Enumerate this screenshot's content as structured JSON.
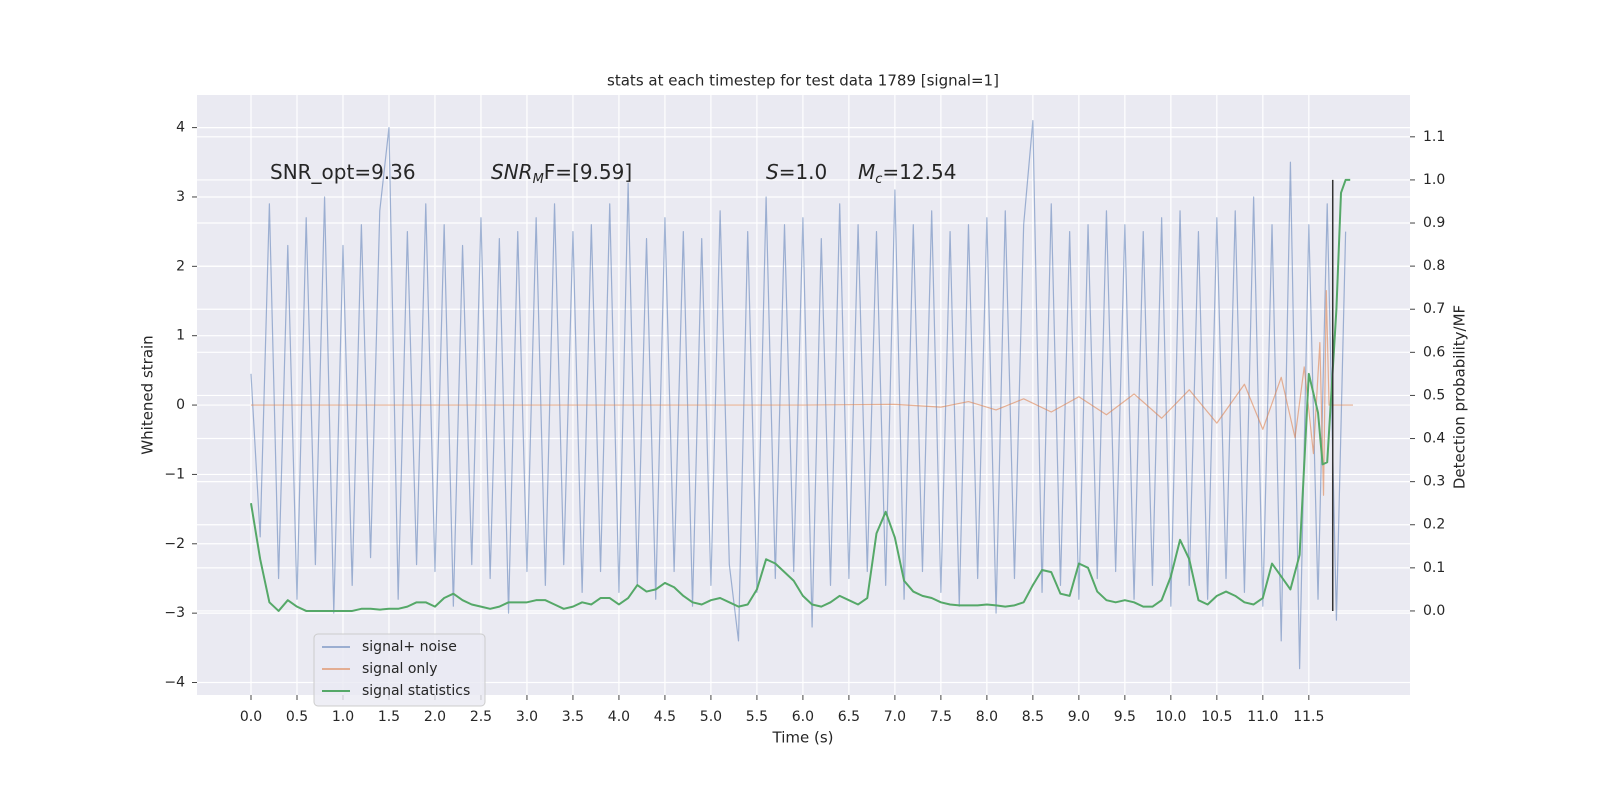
{
  "chart_data": {
    "type": "line",
    "title": "stats at each timestep for test data 1789 [signal=1]",
    "xlabel": "Time (s)",
    "ylabel": "Whitened strain",
    "y2label": "Detection probability/MF",
    "xlim": [
      -0.587,
      12.6
    ],
    "ylim": [
      -4.18,
      4.47
    ],
    "y2lim": [
      -0.195,
      1.197
    ],
    "xticks": [
      {
        "value": 0,
        "label": "0.0"
      },
      0.5,
      {
        "value": 1,
        "label": "1.0"
      },
      1.5,
      {
        "value": 2,
        "label": "2.0"
      },
      2.5,
      {
        "value": 3,
        "label": "3.0"
      },
      3.5,
      {
        "value": 4,
        "label": "4.0"
      },
      4.5,
      {
        "value": 5,
        "label": "5.0"
      },
      5.5,
      {
        "value": 6,
        "label": "6.0"
      },
      6.5,
      {
        "value": 7,
        "label": "7.0"
      },
      7.5,
      {
        "value": 8,
        "label": "8.0"
      },
      8.5,
      {
        "value": 9,
        "label": "9.0"
      },
      9.5,
      {
        "value": 10,
        "label": "10.0"
      },
      10.5,
      {
        "value": 11,
        "label": "11.0"
      },
      11.5
    ],
    "yticks": [
      {
        "value": -4,
        "label": "−4"
      },
      {
        "value": -3,
        "label": "−3"
      },
      {
        "value": -2,
        "label": "−2"
      },
      {
        "value": -1,
        "label": "−1"
      },
      0,
      1,
      2,
      3,
      4
    ],
    "y2ticks": [
      {
        "value": 0,
        "label": "0.0"
      },
      0.1,
      0.2,
      0.3,
      0.4,
      0.5,
      0.6,
      0.7,
      0.8,
      0.9,
      {
        "value": 1,
        "label": "1.0"
      },
      1.1
    ],
    "grid": true,
    "legend": "lower left",
    "annotations": [
      {
        "text": "SNR_opt=9.36"
      },
      {
        "text": "SNR",
        "sub": "M",
        "rest": "F=[9.59]"
      },
      {
        "text": "S",
        "rest": "=1.0"
      },
      {
        "text": "M",
        "sub": "c",
        "rest": "=12.54"
      }
    ],
    "vline": {
      "x": 11.76,
      "y2": [
        0,
        1
      ],
      "color": "#333333"
    },
    "series": [
      {
        "name": "signal+ noise",
        "color": "#4c72b0",
        "opacity": 0.5,
        "x": [
          0.0,
          0.1,
          0.2,
          0.3,
          0.4,
          0.5,
          0.6,
          0.7,
          0.8,
          0.9,
          1.0,
          1.1,
          1.2,
          1.3,
          1.4,
          1.5,
          1.6,
          1.7,
          1.8,
          1.9,
          2.0,
          2.1,
          2.2,
          2.3,
          2.4,
          2.5,
          2.6,
          2.7,
          2.8,
          2.9,
          3.0,
          3.1,
          3.2,
          3.3,
          3.4,
          3.5,
          3.6,
          3.7,
          3.8,
          3.9,
          4.0,
          4.1,
          4.2,
          4.3,
          4.4,
          4.5,
          4.6,
          4.7,
          4.8,
          4.9,
          5.0,
          5.1,
          5.2,
          5.3,
          5.4,
          5.5,
          5.6,
          5.7,
          5.8,
          5.9,
          6.0,
          6.1,
          6.2,
          6.3,
          6.4,
          6.5,
          6.6,
          6.7,
          6.8,
          6.9,
          7.0,
          7.1,
          7.2,
          7.3,
          7.4,
          7.5,
          7.6,
          7.7,
          7.8,
          7.9,
          8.0,
          8.1,
          8.2,
          8.3,
          8.4,
          8.5,
          8.6,
          8.7,
          8.8,
          8.9,
          9.0,
          9.1,
          9.2,
          9.3,
          9.4,
          9.5,
          9.6,
          9.7,
          9.8,
          9.9,
          10.0,
          10.1,
          10.2,
          10.3,
          10.4,
          10.5,
          10.6,
          10.7,
          10.8,
          10.9,
          11.0,
          11.1,
          11.2,
          11.3,
          11.4,
          11.5,
          11.6,
          11.7,
          11.8,
          11.9
        ],
        "values": [
          0.45,
          -1.9,
          2.9,
          -2.5,
          2.3,
          -2.8,
          2.7,
          -2.3,
          3.0,
          -3.0,
          2.3,
          -2.6,
          2.6,
          -2.2,
          2.8,
          4.0,
          -2.8,
          2.5,
          -2.3,
          2.9,
          -2.4,
          2.6,
          -2.9,
          2.3,
          -2.3,
          2.7,
          -2.5,
          2.4,
          -3.0,
          2.5,
          -2.4,
          2.7,
          -2.6,
          2.9,
          -2.3,
          2.5,
          -2.7,
          2.6,
          -2.4,
          2.9,
          -2.7,
          3.2,
          -2.6,
          2.4,
          -2.8,
          2.7,
          -2.4,
          2.5,
          -2.9,
          2.4,
          -2.6,
          2.8,
          -2.3,
          -3.4,
          2.5,
          -2.7,
          3.0,
          -2.5,
          2.6,
          -2.4,
          2.7,
          -3.2,
          2.4,
          -2.6,
          2.9,
          -2.5,
          2.6,
          -2.4,
          2.5,
          -2.6,
          3.1,
          -2.8,
          2.6,
          -2.4,
          2.8,
          -2.7,
          2.5,
          -2.9,
          2.6,
          -2.5,
          2.7,
          -3.0,
          2.8,
          -2.5,
          2.6,
          4.1,
          -2.7,
          2.9,
          -2.6,
          2.5,
          -2.8,
          2.6,
          -2.5,
          2.8,
          -2.4,
          2.6,
          -2.8,
          2.5,
          -2.6,
          2.7,
          -2.9,
          2.8,
          -2.6,
          2.5,
          -2.8,
          2.7,
          -2.5,
          2.8,
          -2.7,
          3.0,
          -2.9,
          2.6,
          -3.4,
          3.5,
          -3.8,
          2.6,
          -2.8,
          2.9,
          -3.1,
          2.5
        ]
      },
      {
        "name": "signal only",
        "color": "#dd8452",
        "opacity": 0.6,
        "x": [
          0,
          1,
          2,
          3,
          4,
          5,
          6,
          7,
          7.5,
          7.8,
          8.1,
          8.4,
          8.7,
          9.0,
          9.3,
          9.6,
          9.9,
          10.2,
          10.5,
          10.8,
          11.0,
          11.2,
          11.35,
          11.45,
          11.55,
          11.62,
          11.66,
          11.69,
          11.72,
          11.8,
          11.98
        ],
        "values": [
          0,
          0,
          0,
          0,
          0,
          0,
          0,
          0.01,
          -0.03,
          0.05,
          -0.07,
          0.09,
          -0.1,
          0.12,
          -0.14,
          0.16,
          -0.19,
          0.22,
          -0.26,
          0.3,
          -0.35,
          0.4,
          -0.47,
          0.55,
          -0.7,
          0.9,
          -1.3,
          1.65,
          0,
          0,
          0
        ]
      },
      {
        "name": "signal statistics",
        "color": "#55a868",
        "opacity": 1,
        "axis": "y2",
        "x": [
          0.0,
          0.1,
          0.2,
          0.3,
          0.4,
          0.5,
          0.6,
          0.7,
          0.8,
          0.9,
          1.0,
          1.1,
          1.2,
          1.3,
          1.4,
          1.5,
          1.6,
          1.7,
          1.8,
          1.9,
          2.0,
          2.1,
          2.2,
          2.3,
          2.4,
          2.5,
          2.6,
          2.7,
          2.8,
          2.9,
          3.0,
          3.1,
          3.2,
          3.3,
          3.4,
          3.5,
          3.6,
          3.7,
          3.8,
          3.9,
          4.0,
          4.1,
          4.2,
          4.3,
          4.4,
          4.5,
          4.6,
          4.7,
          4.8,
          4.9,
          5.0,
          5.1,
          5.2,
          5.3,
          5.4,
          5.5,
          5.6,
          5.7,
          5.8,
          5.9,
          6.0,
          6.1,
          6.2,
          6.3,
          6.4,
          6.5,
          6.6,
          6.7,
          6.8,
          6.9,
          7.0,
          7.1,
          7.2,
          7.3,
          7.4,
          7.5,
          7.6,
          7.7,
          7.8,
          7.9,
          8.0,
          8.1,
          8.2,
          8.3,
          8.4,
          8.5,
          8.6,
          8.7,
          8.8,
          8.9,
          9.0,
          9.1,
          9.2,
          9.3,
          9.4,
          9.5,
          9.6,
          9.7,
          9.8,
          9.9,
          10.0,
          10.1,
          10.2,
          10.3,
          10.4,
          10.5,
          10.6,
          10.7,
          10.8,
          10.9,
          11.0,
          11.1,
          11.2,
          11.3,
          11.4,
          11.5,
          11.6,
          11.65,
          11.7,
          11.8,
          11.85,
          11.9,
          11.95
        ],
        "values": [
          0.25,
          0.12,
          0.02,
          0.0,
          0.025,
          0.01,
          0.0,
          0.0,
          0.0,
          0.0,
          0.0,
          0.0,
          0.005,
          0.005,
          0.003,
          0.005,
          0.005,
          0.01,
          0.02,
          0.02,
          0.01,
          0.03,
          0.04,
          0.025,
          0.015,
          0.01,
          0.005,
          0.01,
          0.02,
          0.02,
          0.02,
          0.025,
          0.025,
          0.015,
          0.005,
          0.01,
          0.02,
          0.015,
          0.03,
          0.03,
          0.015,
          0.03,
          0.06,
          0.045,
          0.05,
          0.065,
          0.055,
          0.035,
          0.02,
          0.015,
          0.025,
          0.03,
          0.02,
          0.01,
          0.015,
          0.05,
          0.12,
          0.11,
          0.09,
          0.07,
          0.035,
          0.015,
          0.01,
          0.02,
          0.035,
          0.025,
          0.015,
          0.03,
          0.18,
          0.23,
          0.17,
          0.07,
          0.045,
          0.035,
          0.03,
          0.02,
          0.015,
          0.013,
          0.013,
          0.013,
          0.015,
          0.013,
          0.01,
          0.013,
          0.02,
          0.06,
          0.095,
          0.09,
          0.04,
          0.035,
          0.11,
          0.1,
          0.045,
          0.025,
          0.02,
          0.025,
          0.02,
          0.01,
          0.01,
          0.025,
          0.08,
          0.165,
          0.12,
          0.025,
          0.015,
          0.035,
          0.045,
          0.035,
          0.02,
          0.015,
          0.03,
          0.11,
          0.08,
          0.05,
          0.13,
          0.55,
          0.46,
          0.34,
          0.345,
          0.7,
          0.97,
          1.0,
          1.0
        ]
      }
    ]
  }
}
